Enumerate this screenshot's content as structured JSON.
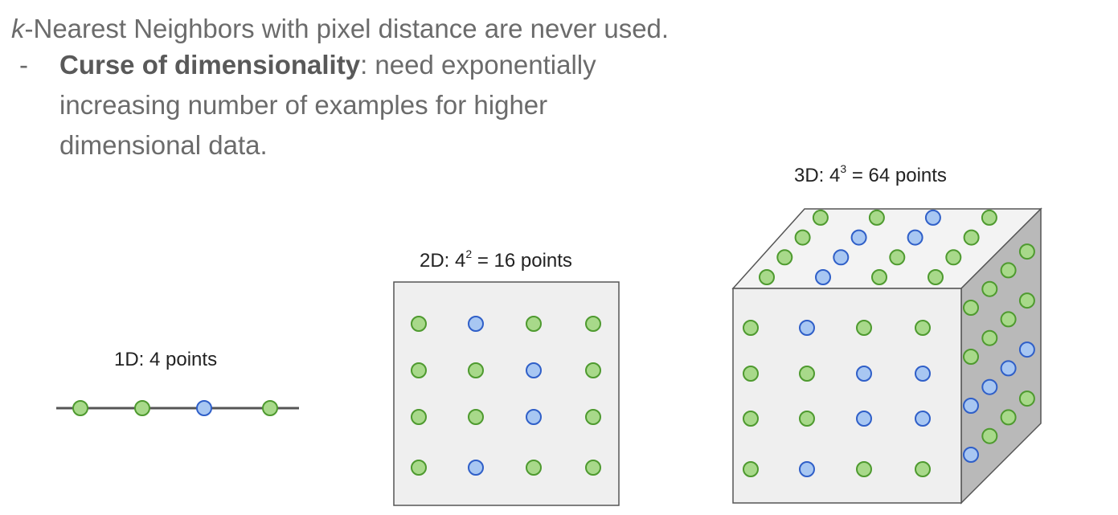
{
  "headline": {
    "k": "k",
    "rest": "-Nearest Neighbors with pixel distance are never used."
  },
  "bullet": {
    "dash": "-",
    "bold": "Curse of dimensionality",
    "text": ": need exponentially increasing number of examples for higher dimensional data."
  },
  "panels": {
    "one_d": {
      "label": "1D: 4 points"
    },
    "two_d": {
      "label_prefix": "2D: 4",
      "exponent": "2",
      "label_suffix": " = 16 points"
    },
    "three_d": {
      "label_prefix": "3D: 4",
      "exponent": "3",
      "label_suffix": " = 64 points"
    }
  },
  "colors": {
    "green_fill": "#a8d98a",
    "green_stroke": "#4e9a2f",
    "blue_fill": "#a8c7f2",
    "blue_stroke": "#2f5fc8",
    "cube_front": "#efefef",
    "cube_top": "#f3f3f3",
    "cube_side": "#b9b9b9"
  },
  "points": {
    "one_d": [
      "green",
      "green",
      "blue",
      "green"
    ],
    "two_d": [
      [
        "green",
        "blue",
        "green",
        "green"
      ],
      [
        "green",
        "green",
        "blue",
        "green"
      ],
      [
        "green",
        "green",
        "blue",
        "green"
      ],
      [
        "green",
        "blue",
        "green",
        "green"
      ]
    ],
    "three_d_front": [
      [
        "green",
        "blue",
        "green",
        "green"
      ],
      [
        "green",
        "green",
        "blue",
        "blue"
      ],
      [
        "green",
        "green",
        "blue",
        "blue"
      ],
      [
        "green",
        "blue",
        "green",
        "green"
      ]
    ],
    "three_d_top": [
      [
        "green",
        "blue",
        "green",
        "green"
      ],
      [
        "green",
        "blue",
        "green",
        "green"
      ],
      [
        "green",
        "blue",
        "blue",
        "green"
      ],
      [
        "green",
        "green",
        "blue",
        "green"
      ]
    ],
    "three_d_side": [
      [
        "green",
        "green",
        "green",
        "green"
      ],
      [
        "green",
        "green",
        "green",
        "green"
      ],
      [
        "blue",
        "blue",
        "blue",
        "blue"
      ],
      [
        "blue",
        "green",
        "green",
        "green"
      ]
    ]
  }
}
